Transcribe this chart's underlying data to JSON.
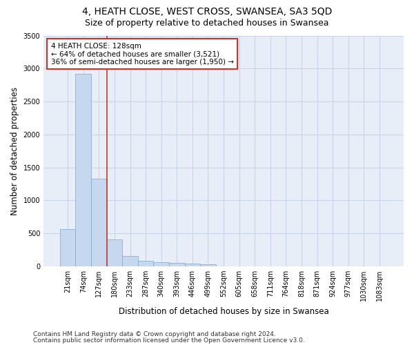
{
  "title": "4, HEATH CLOSE, WEST CROSS, SWANSEA, SA3 5QD",
  "subtitle": "Size of property relative to detached houses in Swansea",
  "xlabel": "Distribution of detached houses by size in Swansea",
  "ylabel": "Number of detached properties",
  "categories": [
    "21sqm",
    "74sqm",
    "127sqm",
    "180sqm",
    "233sqm",
    "287sqm",
    "340sqm",
    "393sqm",
    "446sqm",
    "499sqm",
    "552sqm",
    "605sqm",
    "658sqm",
    "711sqm",
    "764sqm",
    "818sqm",
    "871sqm",
    "924sqm",
    "977sqm",
    "1030sqm",
    "1083sqm"
  ],
  "values": [
    570,
    2920,
    1330,
    410,
    155,
    80,
    60,
    50,
    40,
    30,
    0,
    0,
    0,
    0,
    0,
    0,
    0,
    0,
    0,
    0,
    0
  ],
  "bar_color": "#c5d8ef",
  "bar_edge_color": "#7aa8cc",
  "highlight_line_color": "#c0392b",
  "annotation_text": "4 HEATH CLOSE: 128sqm\n← 64% of detached houses are smaller (3,521)\n36% of semi-detached houses are larger (1,950) →",
  "annotation_box_color": "#c0392b",
  "ylim": [
    0,
    3500
  ],
  "yticks": [
    0,
    500,
    1000,
    1500,
    2000,
    2500,
    3000,
    3500
  ],
  "footnote_line1": "Contains HM Land Registry data © Crown copyright and database right 2024.",
  "footnote_line2": "Contains public sector information licensed under the Open Government Licence v3.0.",
  "bg_color": "#e8eef8",
  "grid_color": "#c8d4e8",
  "title_fontsize": 10,
  "subtitle_fontsize": 9,
  "axis_label_fontsize": 8.5,
  "tick_fontsize": 7,
  "annotation_fontsize": 7.5,
  "footnote_fontsize": 6.5
}
